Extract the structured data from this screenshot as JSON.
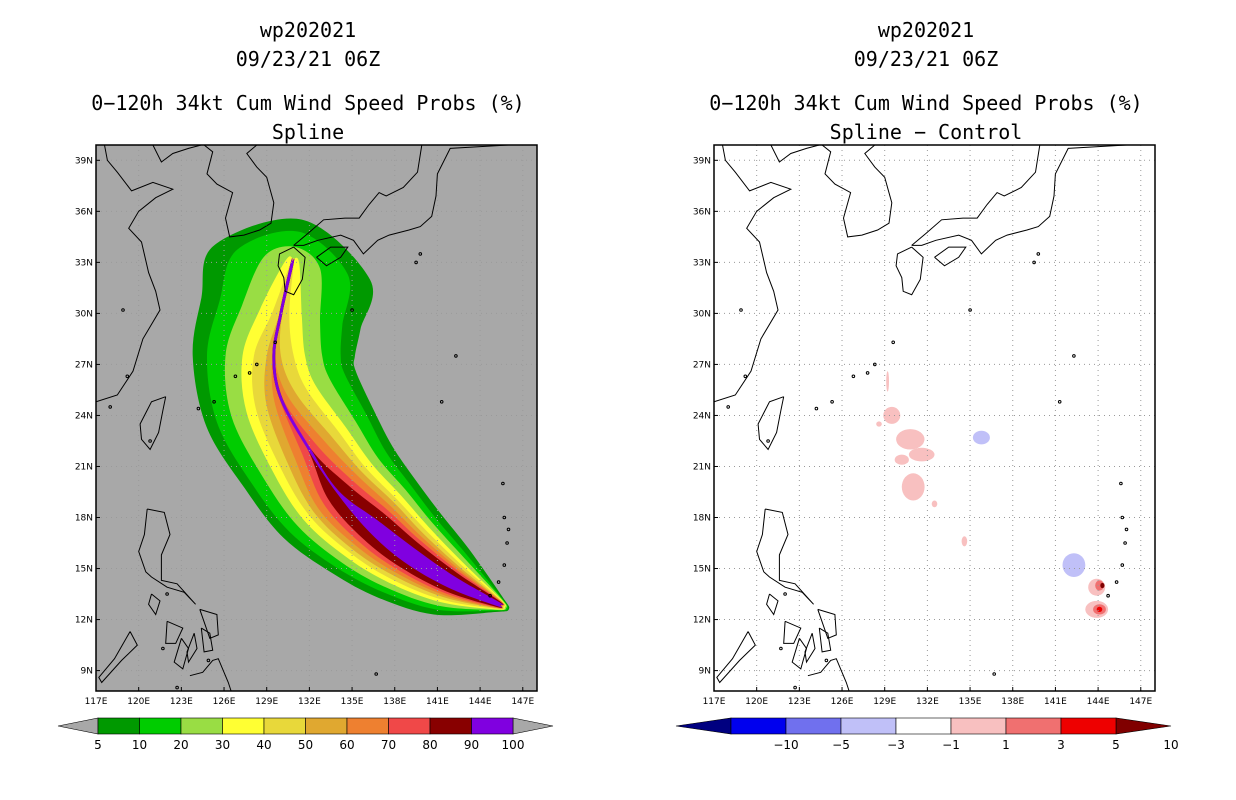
{
  "chart_data": [
    {
      "type": "filled-contour-map",
      "storm_id": "wp202021",
      "datetime": "09/23/21 06Z",
      "title": "0−120h 34kt Cum Wind Speed Probs (%)",
      "subtitle": "Spline",
      "background_color": "#a8a8a8",
      "xlim": [
        117,
        148
      ],
      "ylim": [
        7.8,
        39.9
      ],
      "x_ticks": [
        117,
        120,
        123,
        126,
        129,
        132,
        135,
        138,
        141,
        144,
        147
      ],
      "x_tick_labels": [
        "117E",
        "120E",
        "123E",
        "126E",
        "129E",
        "132E",
        "135E",
        "138E",
        "141E",
        "144E",
        "147E"
      ],
      "y_ticks": [
        9,
        12,
        15,
        18,
        21,
        24,
        27,
        30,
        33,
        36,
        39
      ],
      "y_tick_labels": [
        "9N",
        "12N",
        "15N",
        "18N",
        "21N",
        "24N",
        "27N",
        "30N",
        "33N",
        "36N",
        "39N"
      ],
      "grid": true,
      "colorbar_labels": [
        "5",
        "10",
        "20",
        "30",
        "40",
        "50",
        "60",
        "70",
        "80",
        "90",
        "100"
      ],
      "colorbar_colors": [
        "#009900",
        "#00cc00",
        "#99dd44",
        "#ffff33",
        "#e8d83a",
        "#e0a830",
        "#ee8030",
        "#f04848",
        "#880000",
        "#8000e0"
      ],
      "contour_levels": [
        5,
        10,
        20,
        30,
        40,
        50,
        60,
        70,
        80,
        90
      ],
      "swath": {
        "track": [
          [
            145.3,
            12.9
          ],
          [
            142,
            14.2
          ],
          [
            139,
            15.8
          ],
          [
            136.5,
            17.5
          ],
          [
            134,
            19.5
          ],
          [
            132,
            22
          ],
          [
            130,
            25
          ],
          [
            129.5,
            27.5
          ],
          [
            130,
            30
          ],
          [
            130.8,
            33
          ]
        ],
        "contours": [
          {
            "level": 5,
            "w": [
              0.6,
              2.6,
              3.7,
              4.4,
              5,
              5.3,
              5.6,
              5.7,
              5.7,
              5.6
            ],
            "ww": 0.8
          },
          {
            "level": 10,
            "w": [
              0.5,
              2.2,
              3.2,
              3.9,
              4.4,
              4.7,
              4.8,
              4.7,
              4.4,
              4.0
            ],
            "ww": 0.7
          },
          {
            "level": 20,
            "w": [
              0.45,
              1.9,
              2.8,
              3.4,
              3.7,
              3.8,
              3.7,
              3.4,
              2.8,
              2.0
            ],
            "ww": 0.6
          },
          {
            "level": 30,
            "w": [
              0.4,
              1.6,
              2.4,
              2.9,
              3.1,
              3.0,
              2.6,
              2.2,
              1.5,
              0.5
            ],
            "ww": 0.5
          },
          {
            "level": 40,
            "w": [
              0.35,
              1.4,
              2.1,
              2.5,
              2.6,
              2.4,
              1.9,
              1.4,
              0.6,
              0.1
            ],
            "ww": 0.4
          },
          {
            "level": 50,
            "w": [
              0.3,
              1.2,
              1.8,
              2.2,
              2.2,
              1.8,
              1.1,
              0.5,
              0.1,
              0.1
            ],
            "ww": 0.3
          },
          {
            "level": 60,
            "w": [
              0.28,
              1.05,
              1.55,
              1.85,
              1.8,
              1.2,
              0.5,
              0.1,
              0.1,
              0.1
            ],
            "ww": 0.25
          },
          {
            "level": 70,
            "w": [
              0.25,
              0.9,
              1.3,
              1.5,
              1.3,
              0.6,
              0.1,
              0.1,
              0.1,
              0.1
            ],
            "ww": 0.2
          },
          {
            "level": 80,
            "w": [
              0.22,
              0.75,
              1.05,
              1.15,
              0.85,
              0.1,
              0.1,
              0.1,
              0.1,
              0.1
            ],
            "ww": 0.15
          },
          {
            "level": 90,
            "w": [
              0.15,
              0.45,
              0.6,
              0.5,
              0.1,
              0.1,
              0.1,
              0.1,
              0.1,
              0.1
            ],
            "ww": 0.1
          }
        ]
      }
    },
    {
      "type": "filled-contour-map",
      "storm_id": "wp202021",
      "datetime": "09/23/21 06Z",
      "title": "0−120h 34kt Cum Wind Speed Probs (%)",
      "subtitle": "Spline − Control",
      "background_color": "#ffffff",
      "xlim": [
        117,
        148
      ],
      "ylim": [
        7.8,
        39.9
      ],
      "x_ticks": [
        117,
        120,
        123,
        126,
        129,
        132,
        135,
        138,
        141,
        144,
        147
      ],
      "x_tick_labels": [
        "117E",
        "120E",
        "123E",
        "126E",
        "129E",
        "132E",
        "135E",
        "138E",
        "141E",
        "144E",
        "147E"
      ],
      "y_ticks": [
        9,
        12,
        15,
        18,
        21,
        24,
        27,
        30,
        33,
        36,
        39
      ],
      "y_tick_labels": [
        "9N",
        "12N",
        "15N",
        "18N",
        "21N",
        "24N",
        "27N",
        "30N",
        "33N",
        "36N",
        "39N"
      ],
      "grid": true,
      "colorbar_labels": [
        "−10",
        "−5",
        "−3",
        "−1",
        "1",
        "3",
        "5",
        "10"
      ],
      "colorbar_colors": [
        "#000080",
        "#0000ee",
        "#7070ee",
        "#c0c0f8",
        "#ffffff",
        "#f8c0c0",
        "#f07070",
        "#ee0000",
        "#800000"
      ],
      "difference_patches": [
        {
          "lon": 129.5,
          "lat": 24.0,
          "rx": 0.6,
          "ry": 0.5,
          "value": 2
        },
        {
          "lon": 130.8,
          "lat": 22.6,
          "rx": 1.0,
          "ry": 0.6,
          "value": 2
        },
        {
          "lon": 131.6,
          "lat": 21.7,
          "rx": 0.9,
          "ry": 0.4,
          "value": 2
        },
        {
          "lon": 130.2,
          "lat": 21.4,
          "rx": 0.5,
          "ry": 0.3,
          "value": 2
        },
        {
          "lon": 131.0,
          "lat": 19.8,
          "rx": 0.8,
          "ry": 0.8,
          "value": 2
        },
        {
          "lon": 132.5,
          "lat": 18.8,
          "rx": 0.2,
          "ry": 0.2,
          "value": 2
        },
        {
          "lon": 128.6,
          "lat": 23.5,
          "rx": 0.2,
          "ry": 0.15,
          "value": 2
        },
        {
          "lon": 134.6,
          "lat": 16.6,
          "rx": 0.2,
          "ry": 0.3,
          "value": 2
        },
        {
          "lon": 129.2,
          "lat": 26.0,
          "rx": 0.1,
          "ry": 0.6,
          "value": 2
        },
        {
          "lon": 135.8,
          "lat": 22.7,
          "rx": 0.6,
          "ry": 0.4,
          "value": -2
        },
        {
          "lon": 142.3,
          "lat": 15.2,
          "rx": 0.8,
          "ry": 0.7,
          "value": -2
        },
        {
          "lon": 143.9,
          "lat": 13.9,
          "rx": 0.6,
          "ry": 0.5,
          "value": 2
        },
        {
          "lon": 144.1,
          "lat": 14.0,
          "rx": 0.3,
          "ry": 0.3,
          "value": 4
        },
        {
          "lon": 144.3,
          "lat": 14.0,
          "rx": 0.15,
          "ry": 0.15,
          "value": 12
        },
        {
          "lon": 143.9,
          "lat": 12.6,
          "rx": 0.8,
          "ry": 0.5,
          "value": 2
        },
        {
          "lon": 144.1,
          "lat": 12.6,
          "rx": 0.45,
          "ry": 0.3,
          "value": 4
        },
        {
          "lon": 144.1,
          "lat": 12.6,
          "rx": 0.2,
          "ry": 0.15,
          "value": 7
        }
      ]
    }
  ]
}
